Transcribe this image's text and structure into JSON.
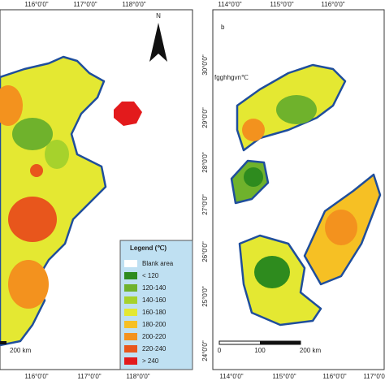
{
  "panel_a": {
    "top_labels": [
      "116°0'0\"",
      "117°0'0\"",
      "118°0'0\""
    ],
    "bottom_labels": [
      "116°0'0\"",
      "117°0'0\"",
      "118°0'0\""
    ],
    "north": "N",
    "scale": "200  km"
  },
  "panel_b": {
    "label": "b",
    "note": "fgghhgvn℃",
    "top_labels": [
      "114°0'0\"",
      "115°0'0\"",
      "116°0'0\""
    ],
    "bottom_labels": [
      "114°0'0\"",
      "115°0'0\"",
      "116°0'0\"",
      "117°0'0\""
    ],
    "side_labels": [
      "30°0'0\"",
      "29°0'0\"",
      "28°0'0\"",
      "27°0'0\"",
      "26°0'0\"",
      "25°0'0\"",
      "24°0'0\""
    ],
    "scale": [
      "0",
      "100",
      "200  km"
    ]
  },
  "legend": {
    "title": "Legend (℃)",
    "items": [
      {
        "label": "Blank area",
        "color": "#ffffff"
      },
      {
        "label": "< 120",
        "color": "#2e8b1e"
      },
      {
        "label": "120-140",
        "color": "#6fb22c"
      },
      {
        "label": "140-160",
        "color": "#a6d22c"
      },
      {
        "label": "160-180",
        "color": "#e4e832"
      },
      {
        "label": "180-200",
        "color": "#f6c024"
      },
      {
        "label": "200-220",
        "color": "#f3921e"
      },
      {
        "label": "220-240",
        "color": "#e8561c"
      },
      {
        "label": "> 240",
        "color": "#e31a1c"
      }
    ]
  }
}
